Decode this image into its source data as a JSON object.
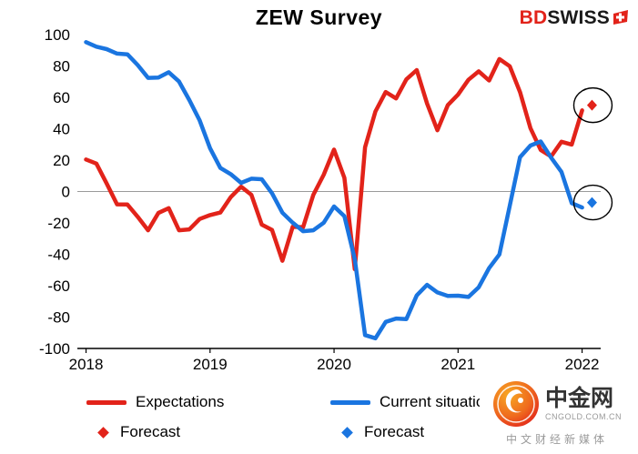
{
  "logo": {
    "bd": "BD",
    "swiss": "SWISS"
  },
  "watermark": {
    "brand": "中金网",
    "domain": "CNGOLD.COM.CN",
    "tagline": "中文财经新媒体"
  },
  "chart_data": {
    "type": "line",
    "title": "ZEW Survey",
    "xlabel": "",
    "ylabel": "",
    "ylim": [
      -100,
      100
    ],
    "ytick_step": 20,
    "x_ticks": [
      2018,
      2019,
      2020,
      2021,
      2022
    ],
    "grid": "zero-line-only",
    "legend_position": "bottom",
    "colors": {
      "expectations": "#e2231a",
      "current_situation": "#1a75e0",
      "zero_line": "#9a9a9a",
      "axis": "#000000"
    },
    "series": [
      {
        "name": "Expectations",
        "color": "#e2231a",
        "start": 2018.0,
        "interval_months": 1,
        "values": [
          20.4,
          17.8,
          5.1,
          -8.2,
          -8.3,
          -16.1,
          -24.7,
          -13.7,
          -10.6,
          -24.7,
          -24.1,
          -17.5,
          -15.0,
          -13.4,
          -3.6,
          3.1,
          -2.1,
          -21.1,
          -24.5,
          -44.1,
          -22.5,
          -22.8,
          -2.1,
          10.7,
          26.7,
          8.7,
          -49.5,
          28.2,
          51.0,
          63.4,
          59.3,
          71.5,
          77.4,
          56.1,
          39.0,
          55.0,
          61.8,
          71.2,
          76.6,
          70.7,
          84.4,
          79.8,
          63.3,
          40.4,
          26.5,
          22.3,
          31.7,
          29.9,
          51.7
        ]
      },
      {
        "name": "Current situation",
        "color": "#1a75e0",
        "start": 2018.0,
        "interval_months": 1,
        "values": [
          95.2,
          92.3,
          90.7,
          87.9,
          87.4,
          80.6,
          72.4,
          72.6,
          76.0,
          70.1,
          58.2,
          45.3,
          27.6,
          15.0,
          11.1,
          5.5,
          8.2,
          7.8,
          -1.1,
          -13.5,
          -19.9,
          -25.3,
          -24.7,
          -19.9,
          -9.5,
          -15.7,
          -43.1,
          -91.5,
          -93.5,
          -83.1,
          -80.9,
          -81.3,
          -66.2,
          -59.5,
          -64.3,
          -66.5,
          -66.4,
          -67.2,
          -61.0,
          -48.8,
          -40.1,
          -9.1,
          21.9,
          29.3,
          31.9,
          21.6,
          12.5,
          -7.4,
          -10.2
        ]
      }
    ],
    "forecast_points": [
      {
        "name": "Forecast",
        "series": "Expectations",
        "color": "#e2231a",
        "x": 2022.08,
        "y": 55,
        "circled": true
      },
      {
        "name": "Forecast",
        "series": "Current situation",
        "color": "#1a75e0",
        "x": 2022.08,
        "y": -7,
        "circled": true
      }
    ]
  }
}
